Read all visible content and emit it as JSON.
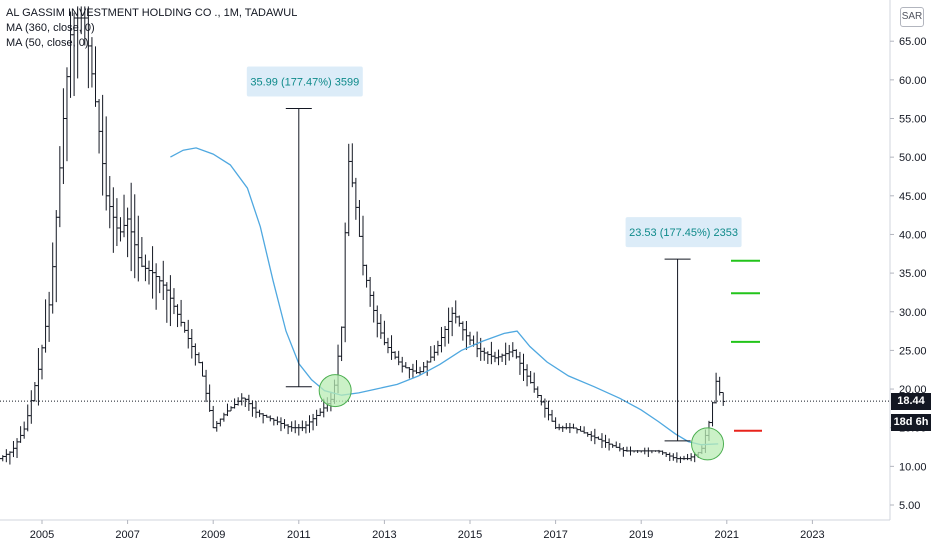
{
  "legend": {
    "title": "AL GASSIM INVESTMENT HOLDING CO ., 1M, TADAWUL",
    "ma1": "MA (360, close, 0)",
    "ma2": "MA (50, close, 0)"
  },
  "currency": "SAR",
  "last_price": "18.44",
  "countdown": "18d 6h",
  "colors": {
    "bars": "#131722",
    "ma": "#4fa8e0",
    "measure_text": "#0e8a8a",
    "measure_bg": "#dcecf8",
    "target": "#22c41a",
    "stop": "#e8231c",
    "circle_fill": "#b9ecb4",
    "circle_stroke": "#4caf50"
  },
  "chart_data": {
    "type": "ohlc",
    "title": "AL GASSIM INVESTMENT HOLDING CO ., 1M, TADAWUL",
    "y_ticks": [
      "65.00",
      "60.00",
      "55.00",
      "50.00",
      "45.00",
      "40.00",
      "35.00",
      "30.00",
      "25.00",
      "20.00",
      "15.00",
      "10.00",
      "5.00"
    ],
    "x_ticks": [
      "2005",
      "2007",
      "2009",
      "2011",
      "2013",
      "2015",
      "2017",
      "2019",
      "2021",
      "2023"
    ],
    "ylim": [
      2,
      68
    ],
    "xlim": [
      2004.0,
      2024.5
    ],
    "ma50": [
      [
        2008.0,
        50.0
      ],
      [
        2008.3,
        50.9
      ],
      [
        2008.6,
        51.2
      ],
      [
        2009.0,
        50.4
      ],
      [
        2009.4,
        49.0
      ],
      [
        2009.8,
        46.0
      ],
      [
        2010.1,
        41.0
      ],
      [
        2010.4,
        34.0
      ],
      [
        2010.7,
        27.5
      ],
      [
        2011.0,
        23.3
      ],
      [
        2011.3,
        21.2
      ],
      [
        2011.6,
        19.8
      ],
      [
        2012.0,
        19.2
      ],
      [
        2012.4,
        19.5
      ],
      [
        2012.8,
        20.0
      ],
      [
        2013.3,
        20.6
      ],
      [
        2013.8,
        21.7
      ],
      [
        2014.3,
        23.2
      ],
      [
        2014.8,
        25.0
      ],
      [
        2015.3,
        26.2
      ],
      [
        2015.8,
        27.2
      ],
      [
        2016.1,
        27.5
      ],
      [
        2016.4,
        25.5
      ],
      [
        2016.8,
        23.5
      ],
      [
        2017.3,
        21.7
      ],
      [
        2017.9,
        20.3
      ],
      [
        2018.5,
        18.8
      ],
      [
        2019.0,
        17.3
      ],
      [
        2019.4,
        15.8
      ],
      [
        2019.8,
        14.2
      ],
      [
        2020.1,
        13.2
      ],
      [
        2020.4,
        12.8
      ],
      [
        2020.8,
        12.9
      ]
    ],
    "measure_1": {
      "label": "35.99 (177.47%) 3599",
      "x": 2011.0,
      "from": 20.3,
      "to": 56.3
    },
    "measure_2": {
      "label": "23.53 (177.45%) 2353",
      "x": 2019.85,
      "from": 13.3,
      "to": 36.8
    },
    "targets": [
      36.6,
      32.4,
      26.1
    ],
    "stop": 14.6,
    "current_price": 18.44,
    "circles": [
      [
        2011.85,
        19.8
      ],
      [
        2020.55,
        12.9
      ]
    ]
  }
}
